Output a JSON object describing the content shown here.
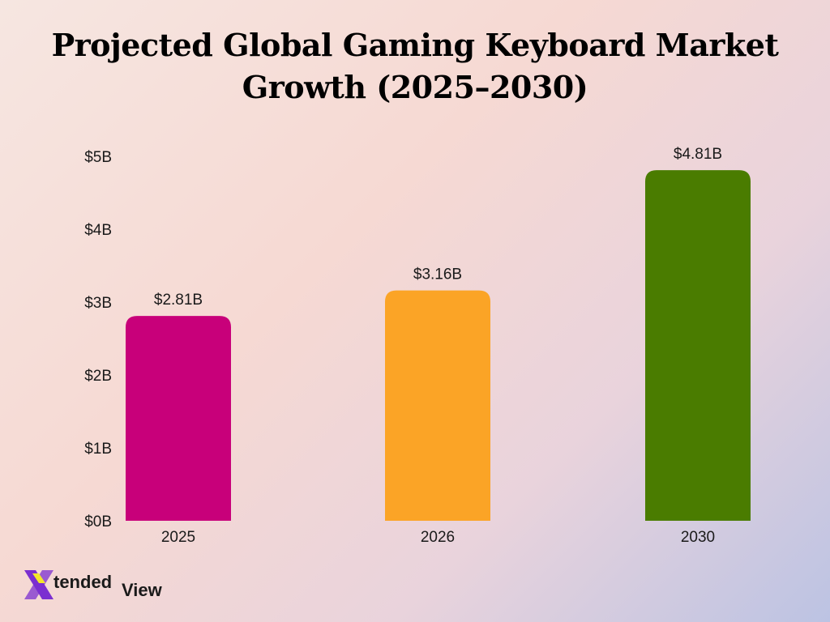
{
  "title_line1": "Projected Global Gaming Keyboard Market",
  "title_line2": "Growth (2025–2030)",
  "chart_data": {
    "type": "bar",
    "categories": [
      "2025",
      "2026",
      "2030"
    ],
    "values": [
      2.81,
      3.16,
      4.81
    ],
    "value_labels": [
      "$2.81B",
      "$3.16B",
      "$4.81B"
    ],
    "colors": [
      "#c8007a",
      "#fba426",
      "#4a7c00"
    ],
    "ylim": [
      0,
      5
    ],
    "yticks": [
      0,
      1,
      2,
      3,
      4,
      5
    ],
    "ytick_labels": [
      "$0B",
      "$1B",
      "$2B",
      "$3B",
      "$4B",
      "$5B"
    ],
    "grid": false,
    "xlabel": "",
    "ylabel": ""
  },
  "logo": {
    "mark": "X",
    "word1": "tended",
    "word2": "View",
    "mark_color": "#7b2fd0"
  }
}
